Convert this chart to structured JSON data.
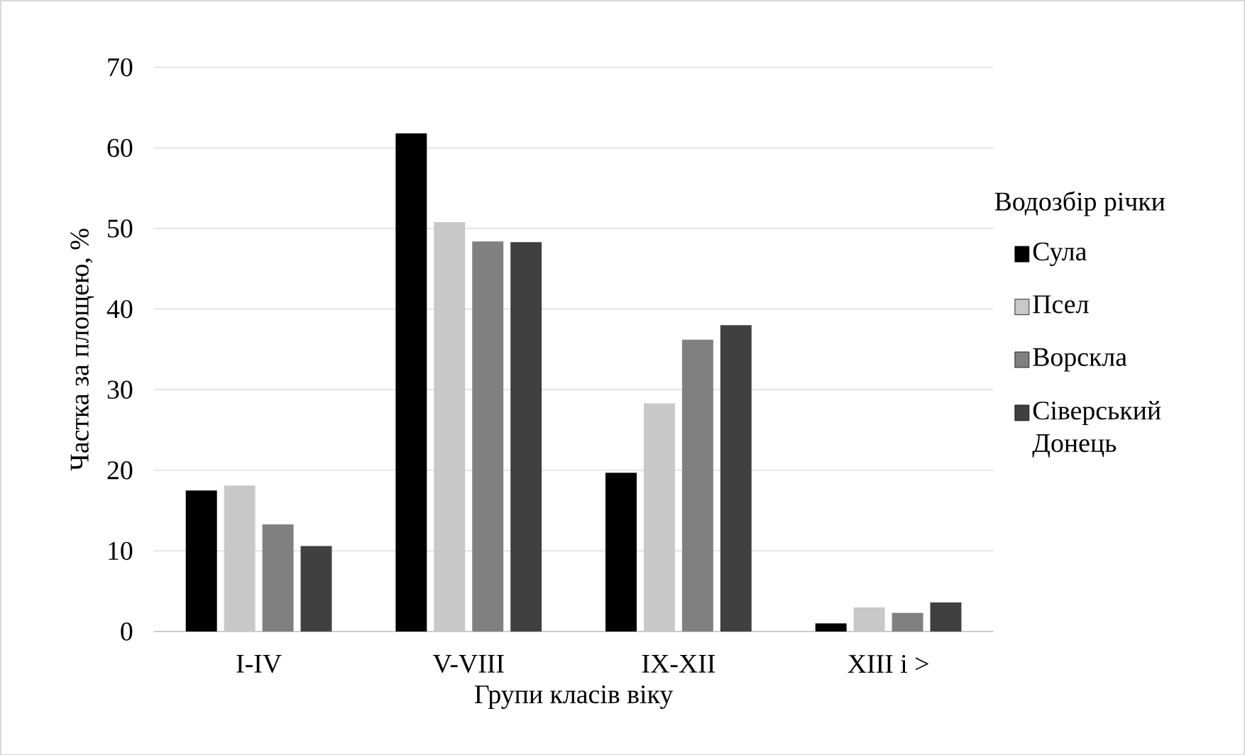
{
  "chart_data": {
    "type": "bar",
    "xlabel": "Групи класів віку",
    "ylabel": "Частка за площею, %",
    "legend_title": "Водозбір річки",
    "categories": [
      "I-IV",
      "V-VIII",
      "IX-XII",
      "XIII і >"
    ],
    "series": [
      {
        "name": "Сула",
        "color": "#000000",
        "values": [
          17.5,
          61.8,
          19.7,
          1.0
        ]
      },
      {
        "name": "Псел",
        "color": "#c8c8c8",
        "values": [
          18.1,
          50.8,
          28.3,
          3.0
        ]
      },
      {
        "name": "Ворскла",
        "color": "#808080",
        "values": [
          13.3,
          48.4,
          36.2,
          2.3
        ]
      },
      {
        "name": "Сіверський Донець",
        "color": "#404040",
        "values": [
          10.6,
          48.3,
          38.0,
          3.6
        ]
      }
    ],
    "ylim": [
      0,
      70
    ],
    "yticks": [
      0,
      10,
      20,
      30,
      40,
      50,
      60,
      70
    ],
    "grid": "y",
    "legend": "right"
  }
}
